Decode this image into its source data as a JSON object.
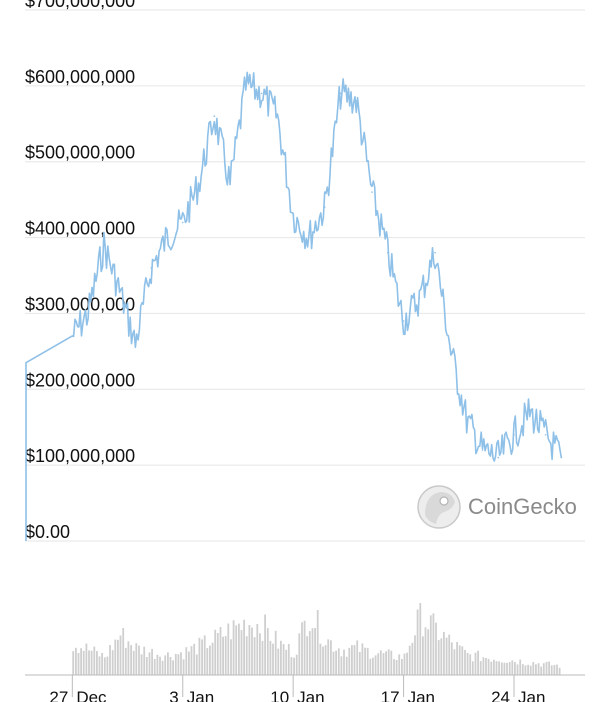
{
  "chart_data": {
    "type": "line",
    "title": "",
    "xlabel": "",
    "ylabel": "",
    "ylim": [
      0,
      700000000
    ],
    "grid": true,
    "y_ticks": [
      {
        "value": 700000000,
        "label": "$700,000,000"
      },
      {
        "value": 600000000,
        "label": "$600,000,000"
      },
      {
        "value": 500000000,
        "label": "$500,000,000"
      },
      {
        "value": 400000000,
        "label": "$400,000,000"
      },
      {
        "value": 300000000,
        "label": "$300,000,000"
      },
      {
        "value": 200000000,
        "label": "$200,000,000"
      },
      {
        "value": 100000000,
        "label": "$100,000,000"
      },
      {
        "value": 0,
        "label": "$0.00"
      }
    ],
    "x_ticks": [
      {
        "date": "2023-12-27",
        "day": "27",
        "month": "Dec"
      },
      {
        "date": "2024-01-03",
        "day": "3",
        "month": "Jan"
      },
      {
        "date": "2024-01-10",
        "day": "10",
        "month": "Jan"
      },
      {
        "date": "2024-01-17",
        "day": "17",
        "month": "Jan"
      },
      {
        "date": "2024-01-24",
        "day": "24",
        "month": "Jan"
      }
    ],
    "series": [
      {
        "x": [
          "2023-12-27",
          "2023-12-28",
          "2023-12-29",
          "2023-12-30",
          "2023-12-31",
          "2024-01-01",
          "2024-01-02",
          "2024-01-03",
          "2024-01-04",
          "2024-01-05",
          "2024-01-06",
          "2024-01-07",
          "2024-01-08",
          "2024-01-09",
          "2024-01-10",
          "2024-01-11",
          "2024-01-12",
          "2024-01-13",
          "2024-01-14",
          "2024-01-15",
          "2024-01-16",
          "2024-01-17",
          "2024-01-18",
          "2024-01-19",
          "2024-01-20",
          "2024-01-21",
          "2024-01-22",
          "2024-01-23",
          "2024-01-24",
          "2024-01-25",
          "2024-01-26",
          "2024-01-27"
        ],
        "values": [
          270000000,
          300000000,
          390000000,
          330000000,
          260000000,
          360000000,
          400000000,
          420000000,
          470000000,
          560000000,
          470000000,
          600000000,
          590000000,
          560000000,
          430000000,
          400000000,
          440000000,
          590000000,
          580000000,
          460000000,
          380000000,
          290000000,
          320000000,
          380000000,
          250000000,
          160000000,
          120000000,
          110000000,
          140000000,
          170000000,
          140000000,
          110000000
        ]
      }
    ],
    "volume": {
      "x": [
        "2023-12-27",
        "2023-12-28",
        "2023-12-29",
        "2023-12-30",
        "2023-12-31",
        "2024-01-01",
        "2024-01-02",
        "2024-01-03",
        "2024-01-04",
        "2024-01-05",
        "2024-01-06",
        "2024-01-07",
        "2024-01-08",
        "2024-01-09",
        "2024-01-10",
        "2024-01-11",
        "2024-01-12",
        "2024-01-13",
        "2024-01-14",
        "2024-01-15",
        "2024-01-16",
        "2024-01-17",
        "2024-01-18",
        "2024-01-19",
        "2024-01-20",
        "2024-01-21",
        "2024-01-22",
        "2024-01-23",
        "2024-01-24",
        "2024-01-25",
        "2024-01-26",
        "2024-01-27"
      ],
      "values": [
        35,
        28,
        20,
        45,
        30,
        25,
        22,
        25,
        32,
        40,
        50,
        58,
        55,
        35,
        25,
        70,
        40,
        28,
        30,
        25,
        22,
        20,
        65,
        50,
        35,
        22,
        20,
        18,
        16,
        14,
        12,
        10
      ]
    },
    "watermark": "CoinGecko",
    "colors": {
      "line": "#8ec0e8",
      "volume": "#cfcfcf",
      "grid": "#e6e6e6",
      "text": "#111111"
    }
  }
}
